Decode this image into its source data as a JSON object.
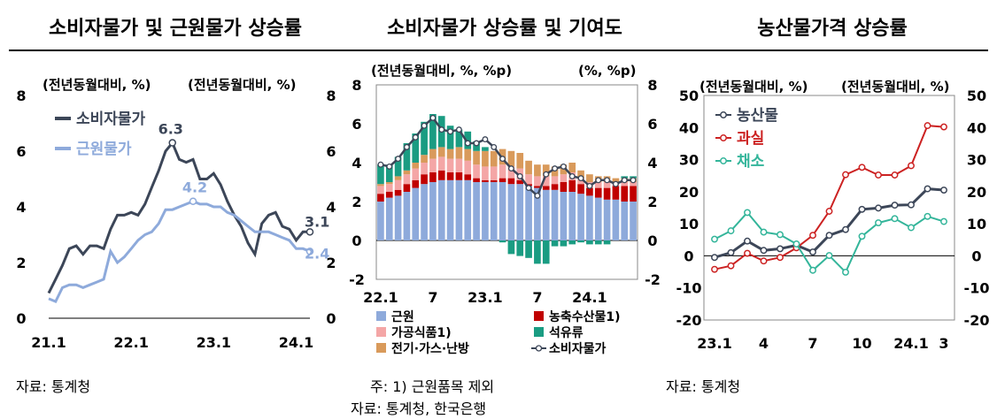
{
  "titles": {
    "left": "소비자물가 및 근원물가 상승률",
    "mid": "소비자물가 상승률 및 기여도",
    "right": "농산물가격 상승률"
  },
  "notes": {
    "left": "자료: 통계청",
    "mid_note": "주: 1) 근원품목 제외",
    "mid_src": "자료: 통계청, 한국은행",
    "right": "자료: 통계청"
  },
  "colors": {
    "cpi": "#3c4658",
    "core": "#8eaadb",
    "core_bar": "#8eaadb",
    "processed": "#f4a6a6",
    "utilities": "#d99a5b",
    "agri": "#c00000",
    "oil": "#1a9c82",
    "fruit": "#cc2222",
    "veg": "#33b59a"
  },
  "chart_data": [
    {
      "type": "line",
      "title": "소비자물가 및 근원물가 상승률",
      "ylabel_left": "(전년동월대비, %)",
      "ylabel_right": "(전년동월대비, %)",
      "ylim": [
        0,
        8
      ],
      "yticks": [
        "0",
        "2",
        "4",
        "6",
        "8"
      ],
      "xtick_labels": [
        "21.1",
        "22.1",
        "23.1",
        "24.1"
      ],
      "series": [
        {
          "name": "소비자물가",
          "values": [
            0.9,
            1.4,
            1.9,
            2.5,
            2.6,
            2.3,
            2.6,
            2.6,
            2.5,
            3.2,
            3.7,
            3.7,
            3.8,
            3.7,
            4.1,
            4.7,
            5.3,
            6.0,
            6.3,
            5.7,
            5.6,
            5.7,
            5.0,
            5.0,
            5.2,
            4.8,
            4.2,
            3.7,
            3.3,
            2.7,
            2.3,
            3.4,
            3.7,
            3.8,
            3.3,
            3.2,
            2.8,
            3.1,
            3.1
          ],
          "peak_label": "6.3",
          "end_label": "3.1"
        },
        {
          "name": "근원물가",
          "values": [
            0.7,
            0.6,
            1.1,
            1.2,
            1.2,
            1.1,
            1.2,
            1.3,
            1.4,
            2.4,
            2.0,
            2.2,
            2.5,
            2.8,
            3.0,
            3.1,
            3.4,
            3.9,
            3.9,
            4.0,
            4.1,
            4.2,
            4.1,
            4.1,
            4.0,
            4.0,
            3.8,
            3.7,
            3.5,
            3.3,
            3.1,
            3.1,
            3.1,
            3.0,
            2.9,
            2.8,
            2.5,
            2.5,
            2.4
          ],
          "peak_label": "4.2",
          "end_label": "2.4"
        }
      ]
    },
    {
      "type": "bar",
      "title": "소비자물가 상승률 및 기여도",
      "ylabel_left": "(전년동월대비, %, %p)",
      "ylabel_right": "(%, %p)",
      "ylim": [
        -2,
        8
      ],
      "yticks": [
        "-2",
        "0",
        "2",
        "4",
        "6",
        "8"
      ],
      "xtick_labels": [
        "22.1",
        "7",
        "23.1",
        "7",
        "24.1"
      ],
      "series": [
        {
          "name": "근원",
          "values": [
            2.0,
            2.2,
            2.3,
            2.5,
            2.7,
            2.9,
            3.0,
            3.1,
            3.1,
            3.1,
            3.1,
            3.0,
            3.0,
            3.0,
            3.0,
            2.9,
            2.9,
            2.8,
            2.7,
            2.6,
            2.6,
            2.5,
            2.5,
            2.4,
            2.3,
            2.2,
            2.1,
            2.1,
            2.0,
            2.0
          ]
        },
        {
          "name": "농축수산물1)",
          "values": [
            0.4,
            0.3,
            0.3,
            0.4,
            0.4,
            0.5,
            0.5,
            0.5,
            0.4,
            0.4,
            0.3,
            0.2,
            0.1,
            0.1,
            0.2,
            0.3,
            0.2,
            0.1,
            0.1,
            0.2,
            0.3,
            0.5,
            0.6,
            0.5,
            0.4,
            0.5,
            0.6,
            0.7,
            0.8,
            0.8
          ]
        },
        {
          "name": "가공식품1)",
          "values": [
            0.4,
            0.4,
            0.5,
            0.5,
            0.6,
            0.6,
            0.7,
            0.7,
            0.7,
            0.7,
            0.7,
            0.7,
            0.7,
            0.7,
            0.7,
            0.6,
            0.6,
            0.5,
            0.5,
            0.5,
            0.4,
            0.4,
            0.4,
            0.3,
            0.3,
            0.3,
            0.3,
            0.2,
            0.2,
            0.2
          ]
        },
        {
          "name": "전기·가스·난방",
          "values": [
            0.1,
            0.1,
            0.2,
            0.2,
            0.3,
            0.4,
            0.5,
            0.5,
            0.5,
            0.6,
            0.6,
            0.7,
            0.8,
            0.8,
            0.8,
            0.8,
            0.8,
            0.7,
            0.6,
            0.6,
            0.5,
            0.5,
            0.5,
            0.4,
            0.4,
            0.3,
            0.3,
            0.2,
            0.2,
            0.2
          ]
        },
        {
          "name": "석유류",
          "values": [
            1.0,
            0.9,
            1.0,
            1.4,
            1.5,
            1.7,
            1.8,
            1.6,
            1.2,
            0.9,
            0.9,
            0.5,
            0.2,
            0.0,
            -0.1,
            -0.7,
            -0.8,
            -0.9,
            -1.2,
            -1.2,
            -0.3,
            -0.3,
            -0.2,
            -0.1,
            -0.2,
            -0.2,
            -0.2,
            0.0,
            0.1,
            0.1
          ]
        },
        {
          "name": "소비자물가",
          "values": [
            3.9,
            3.8,
            4.2,
            4.8,
            5.3,
            5.9,
            6.3,
            5.7,
            5.6,
            5.7,
            5.0,
            5.0,
            5.2,
            4.8,
            4.2,
            3.7,
            3.3,
            2.7,
            2.3,
            3.4,
            3.7,
            3.8,
            3.3,
            3.2,
            2.8,
            3.1,
            3.1,
            2.9,
            3.1,
            3.1
          ]
        }
      ]
    },
    {
      "type": "line",
      "title": "농산물가격 상승률",
      "ylabel_left": "(전년동월대비, %)",
      "ylabel_right": "(전년동월대비, %)",
      "ylim": [
        -20,
        50
      ],
      "yticks": [
        "-20",
        "-10",
        "0",
        "10",
        "20",
        "30",
        "40",
        "50"
      ],
      "xtick_labels": [
        "23.1",
        "4",
        "7",
        "10",
        "24.1",
        "3"
      ],
      "series": [
        {
          "name": "농산물",
          "values": [
            -0.5,
            1.0,
            4.6,
            1.7,
            2.2,
            3.3,
            1.2,
            6.4,
            8.2,
            14.5,
            14.9,
            15.8,
            15.9,
            20.9,
            20.5
          ]
        },
        {
          "name": "과실",
          "values": [
            -4.2,
            -3.1,
            0.8,
            -1.6,
            -0.5,
            2.5,
            6.4,
            13.9,
            25.3,
            27.6,
            25.2,
            25.2,
            28.1,
            40.6,
            40.2
          ]
        },
        {
          "name": "채소",
          "values": [
            5.2,
            7.8,
            13.5,
            7.4,
            6.6,
            3.7,
            -4.5,
            0.1,
            -5.1,
            6.1,
            10.3,
            11.6,
            8.8,
            12.3,
            10.7
          ]
        }
      ]
    }
  ]
}
